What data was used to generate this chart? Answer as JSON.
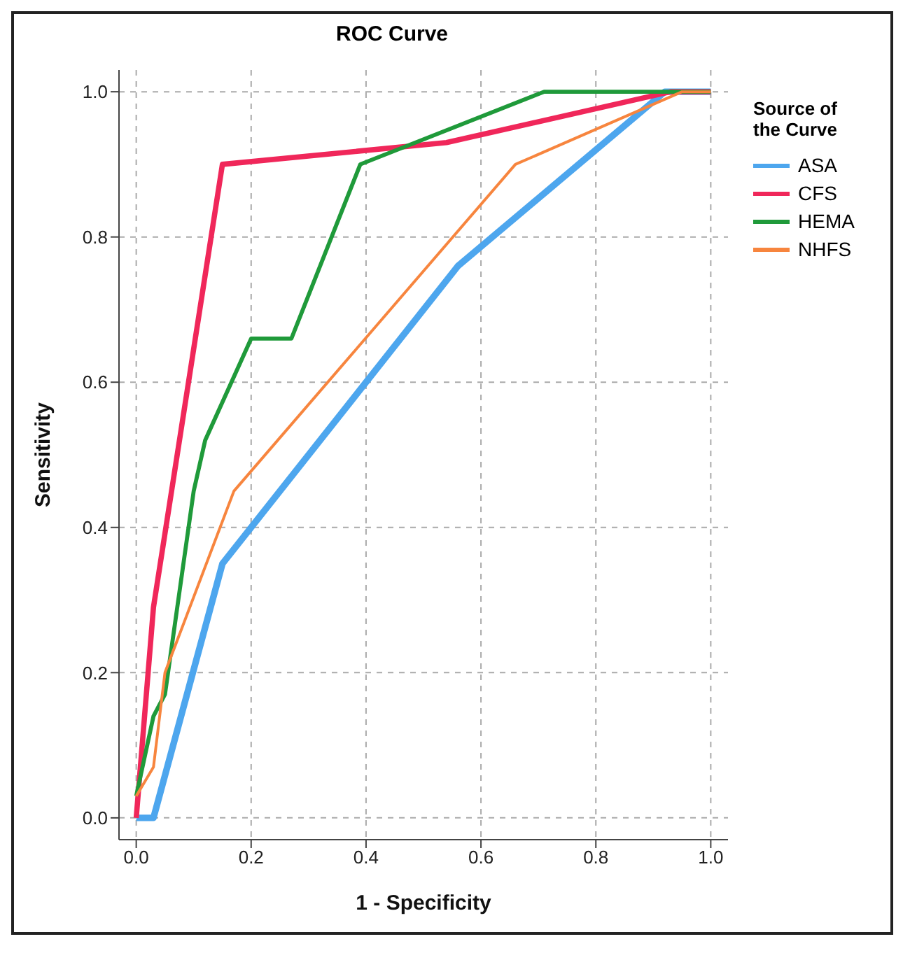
{
  "chart_data": {
    "type": "line",
    "title": "ROC Curve",
    "xlabel": "1 - Specificity",
    "ylabel": "Sensitivity",
    "legend_title": "Source of the Curve",
    "legend": "right",
    "grid": true,
    "marker": "none",
    "line_style": "solid",
    "xlim": [
      -0.03,
      1.03
    ],
    "ylim": [
      -0.03,
      1.03
    ],
    "xticks": [
      {
        "value": 0,
        "label": "0.0"
      },
      {
        "value": 0.2,
        "label": "0.2"
      },
      {
        "value": 0.4,
        "label": "0.4"
      },
      {
        "value": 0.6,
        "label": "0.6"
      },
      {
        "value": 0.8,
        "label": "0.8"
      },
      {
        "value": 1,
        "label": "1.0"
      }
    ],
    "yticks": [
      {
        "value": 0,
        "label": "0.0"
      },
      {
        "value": 0.2,
        "label": "0.2"
      },
      {
        "value": 0.4,
        "label": "0.4"
      },
      {
        "value": 0.6,
        "label": "0.6"
      },
      {
        "value": 0.8,
        "label": "0.8"
      },
      {
        "value": 1,
        "label": "1.0"
      }
    ],
    "series": [
      {
        "name": "ASA",
        "color": "#4da6ee",
        "x": [
          0,
          0.03,
          0.15,
          0.56,
          0.92,
          1
        ],
        "values": [
          0,
          0,
          0.35,
          0.76,
          1,
          1
        ]
      },
      {
        "name": "CFS",
        "color": "#f0275a",
        "x": [
          0,
          0.03,
          0.15,
          0.54,
          0.93,
          1
        ],
        "values": [
          0,
          0.29,
          0.9,
          0.93,
          1,
          1
        ]
      },
      {
        "name": "HEMA",
        "color": "#1f9a3a",
        "x": [
          0,
          0.03,
          0.05,
          0.1,
          0.12,
          0.2,
          0.27,
          0.39,
          0.71,
          1
        ],
        "values": [
          0.03,
          0.14,
          0.17,
          0.45,
          0.52,
          0.66,
          0.66,
          0.9,
          1,
          1
        ]
      },
      {
        "name": "NHFS",
        "color": "#f7853e",
        "x": [
          0,
          0.03,
          0.05,
          0.17,
          0.66,
          0.95,
          1
        ],
        "values": [
          0.03,
          0.07,
          0.2,
          0.45,
          0.9,
          1,
          1
        ]
      }
    ]
  }
}
